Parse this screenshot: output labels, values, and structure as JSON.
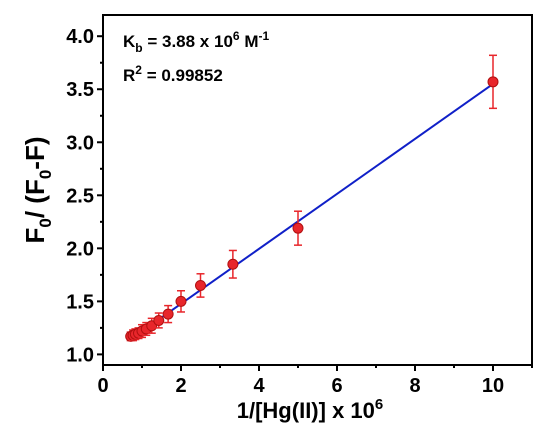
{
  "chart_data": {
    "type": "scatter",
    "xlabel": "1/[Hg(II)] x 10",
    "xlabel_sup": "6",
    "ylabel_parts": [
      "F",
      "0",
      "/ (F",
      "0",
      "-F)"
    ],
    "xlim": [
      0,
      11
    ],
    "ylim": [
      0.9,
      4.2
    ],
    "xticks": [
      0,
      2,
      4,
      6,
      8,
      10
    ],
    "yticks": [
      1.0,
      1.5,
      2.0,
      2.5,
      3.0,
      3.5,
      4.0
    ],
    "grid": false,
    "annotations": {
      "kb_text": "K",
      "kb_sub": "b",
      "kb_value": " = 3.88 x 10",
      "kb_sup": "6",
      "kb_unit": " M",
      "kb_unit_sup": "-1",
      "r2_text": "R",
      "r2_sup": "2",
      "r2_value": " = 0.99852"
    },
    "points": [
      {
        "x": 0.71,
        "y": 1.17,
        "err": 0.04
      },
      {
        "x": 0.77,
        "y": 1.18,
        "err": 0.05
      },
      {
        "x": 0.83,
        "y": 1.19,
        "err": 0.05
      },
      {
        "x": 0.91,
        "y": 1.2,
        "err": 0.05
      },
      {
        "x": 1.0,
        "y": 1.22,
        "err": 0.06
      },
      {
        "x": 1.11,
        "y": 1.24,
        "err": 0.06
      },
      {
        "x": 1.25,
        "y": 1.27,
        "err": 0.07
      },
      {
        "x": 1.43,
        "y": 1.32,
        "err": 0.07
      },
      {
        "x": 1.67,
        "y": 1.38,
        "err": 0.08
      },
      {
        "x": 2.0,
        "y": 1.5,
        "err": 0.1
      },
      {
        "x": 2.5,
        "y": 1.65,
        "err": 0.11
      },
      {
        "x": 3.33,
        "y": 1.85,
        "err": 0.13
      },
      {
        "x": 5.0,
        "y": 2.19,
        "err": 0.16
      },
      {
        "x": 10.0,
        "y": 3.57,
        "err": 0.25
      }
    ],
    "fit_line": {
      "x": [
        0.7,
        10.0
      ],
      "y": [
        1.14,
        3.55
      ]
    },
    "colors": {
      "points": "#e8262b",
      "fit": "#1020c8",
      "axis": "#000000"
    }
  }
}
